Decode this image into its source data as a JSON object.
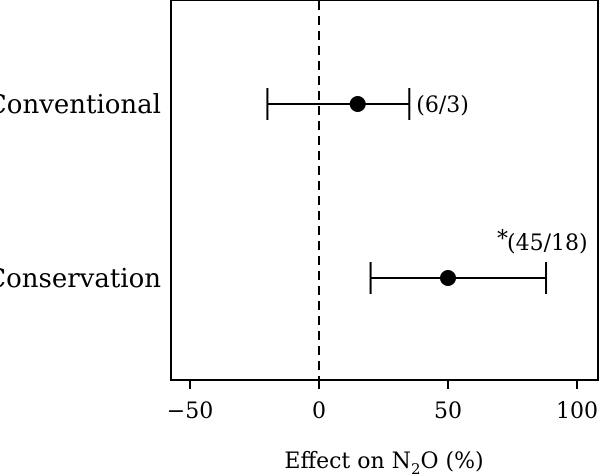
{
  "chart_data": {
    "type": "scatter",
    "orientation": "horizontal",
    "title": "",
    "xlabel": "Effect on N",
    "xlabel_sub": "2",
    "xlabel_suffix": "O (%)",
    "ylabel": "",
    "xlim": [
      -55,
      107
    ],
    "xticks": [
      -50,
      0,
      50,
      100
    ],
    "xtick_labels": [
      "−50",
      "0",
      "50",
      "100"
    ],
    "reference_line": 0,
    "categories": [
      "Conventional",
      "Conservation"
    ],
    "points": [
      {
        "category": "Conventional",
        "value": 15,
        "ci_low": -20,
        "ci_high": 35,
        "annotation": "(6/3)",
        "significant": false
      },
      {
        "category": "Conservation",
        "value": 50,
        "ci_low": 20,
        "ci_high": 88,
        "annotation": "(45/18)",
        "significant": true
      }
    ],
    "significance_marker": "*",
    "grid": false,
    "legend": "none"
  }
}
